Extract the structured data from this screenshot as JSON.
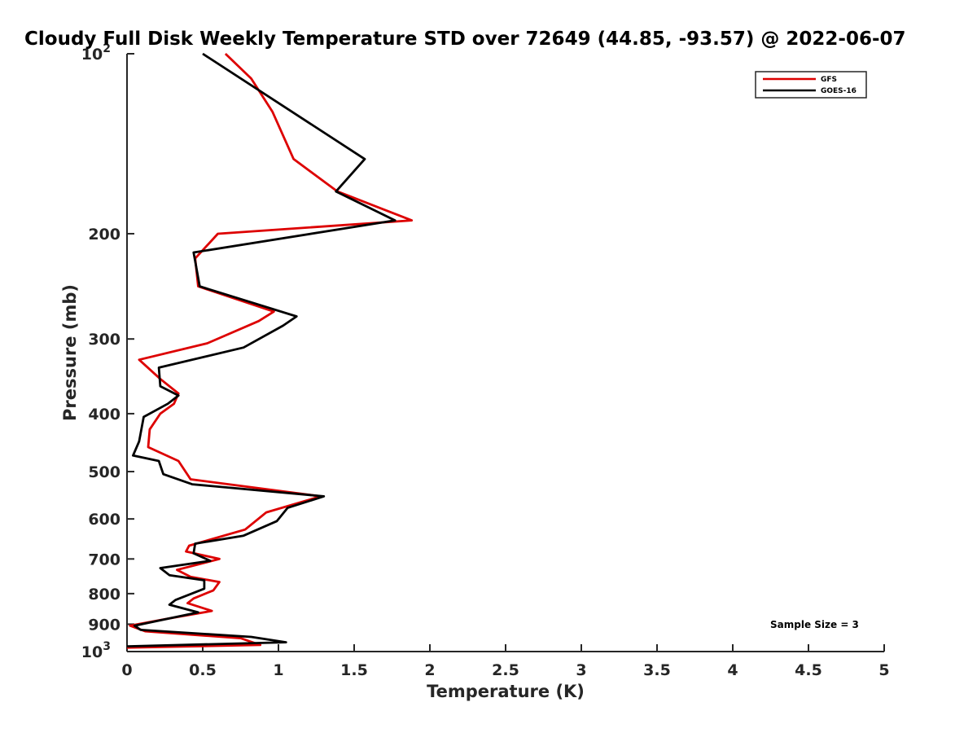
{
  "chart_data": {
    "type": "line",
    "title": "Cloudy Full Disk Weekly Temperature STD over 72649 (44.85, -93.57) @ 2022-06-07",
    "xlabel": "Temperature (K)",
    "ylabel": "Pressure (mb)",
    "xlim": [
      0,
      5
    ],
    "ylim": [
      100,
      1000
    ],
    "y_scale": "log",
    "y_reversed": true,
    "x_ticks": [
      "0",
      "0.5",
      "1",
      "1.5",
      "2",
      "2.5",
      "3",
      "3.5",
      "4",
      "4.5",
      "5"
    ],
    "y_ticks": [
      {
        "value": 100,
        "base": "10",
        "exp": "2"
      },
      {
        "value": 200,
        "label": "200"
      },
      {
        "value": 300,
        "label": "300"
      },
      {
        "value": 400,
        "label": "400"
      },
      {
        "value": 500,
        "label": "500"
      },
      {
        "value": 600,
        "label": "600"
      },
      {
        "value": 700,
        "label": "700"
      },
      {
        "value": 800,
        "label": "800"
      },
      {
        "value": 900,
        "label": "900"
      },
      {
        "value": 1000,
        "base": "10",
        "exp": "3"
      }
    ],
    "grid": false,
    "legend_position": "top-right",
    "series": [
      {
        "name": "GFS",
        "color": "#dd0000",
        "points": [
          [
            0.65,
            100
          ],
          [
            0.82,
            110
          ],
          [
            0.96,
            125
          ],
          [
            1.1,
            150
          ],
          [
            1.39,
            170
          ],
          [
            1.88,
            190
          ],
          [
            0.6,
            200
          ],
          [
            0.45,
            220
          ],
          [
            0.47,
            245
          ],
          [
            0.97,
            270
          ],
          [
            0.87,
            280
          ],
          [
            0.53,
            305
          ],
          [
            0.08,
            325
          ],
          [
            0.22,
            350
          ],
          [
            0.34,
            370
          ],
          [
            0.31,
            385
          ],
          [
            0.22,
            400
          ],
          [
            0.15,
            425
          ],
          [
            0.14,
            455
          ],
          [
            0.34,
            480
          ],
          [
            0.42,
            515
          ],
          [
            1.28,
            550
          ],
          [
            0.92,
            585
          ],
          [
            0.78,
            625
          ],
          [
            0.41,
            665
          ],
          [
            0.39,
            680
          ],
          [
            0.61,
            700
          ],
          [
            0.33,
            730
          ],
          [
            0.42,
            750
          ],
          [
            0.61,
            765
          ],
          [
            0.57,
            790
          ],
          [
            0.44,
            815
          ],
          [
            0.4,
            830
          ],
          [
            0.56,
            855
          ],
          [
            0.28,
            880
          ],
          [
            0.02,
            905
          ],
          [
            0.12,
            925
          ],
          [
            0.75,
            950
          ],
          [
            0.88,
            975
          ],
          [
            0.0,
            985
          ]
        ]
      },
      {
        "name": "GOES-16",
        "color": "#000000",
        "points": [
          [
            0.5,
            100
          ],
          [
            1.57,
            150
          ],
          [
            1.38,
            170
          ],
          [
            1.77,
            190
          ],
          [
            0.44,
            215
          ],
          [
            0.48,
            245
          ],
          [
            1.12,
            275
          ],
          [
            1.03,
            285
          ],
          [
            0.77,
            310
          ],
          [
            0.21,
            335
          ],
          [
            0.22,
            360
          ],
          [
            0.34,
            373
          ],
          [
            0.27,
            385
          ],
          [
            0.11,
            405
          ],
          [
            0.08,
            445
          ],
          [
            0.04,
            470
          ],
          [
            0.21,
            480
          ],
          [
            0.24,
            505
          ],
          [
            0.43,
            525
          ],
          [
            1.3,
            550
          ],
          [
            1.06,
            575
          ],
          [
            0.99,
            605
          ],
          [
            0.77,
            640
          ],
          [
            0.45,
            660
          ],
          [
            0.44,
            685
          ],
          [
            0.55,
            705
          ],
          [
            0.22,
            725
          ],
          [
            0.28,
            745
          ],
          [
            0.51,
            760
          ],
          [
            0.51,
            785
          ],
          [
            0.32,
            820
          ],
          [
            0.28,
            835
          ],
          [
            0.47,
            860
          ],
          [
            0.05,
            905
          ],
          [
            0.09,
            920
          ],
          [
            0.82,
            945
          ],
          [
            1.05,
            965
          ],
          [
            0.0,
            980
          ]
        ]
      }
    ],
    "annotations": [
      "Sample Size = 3"
    ]
  }
}
